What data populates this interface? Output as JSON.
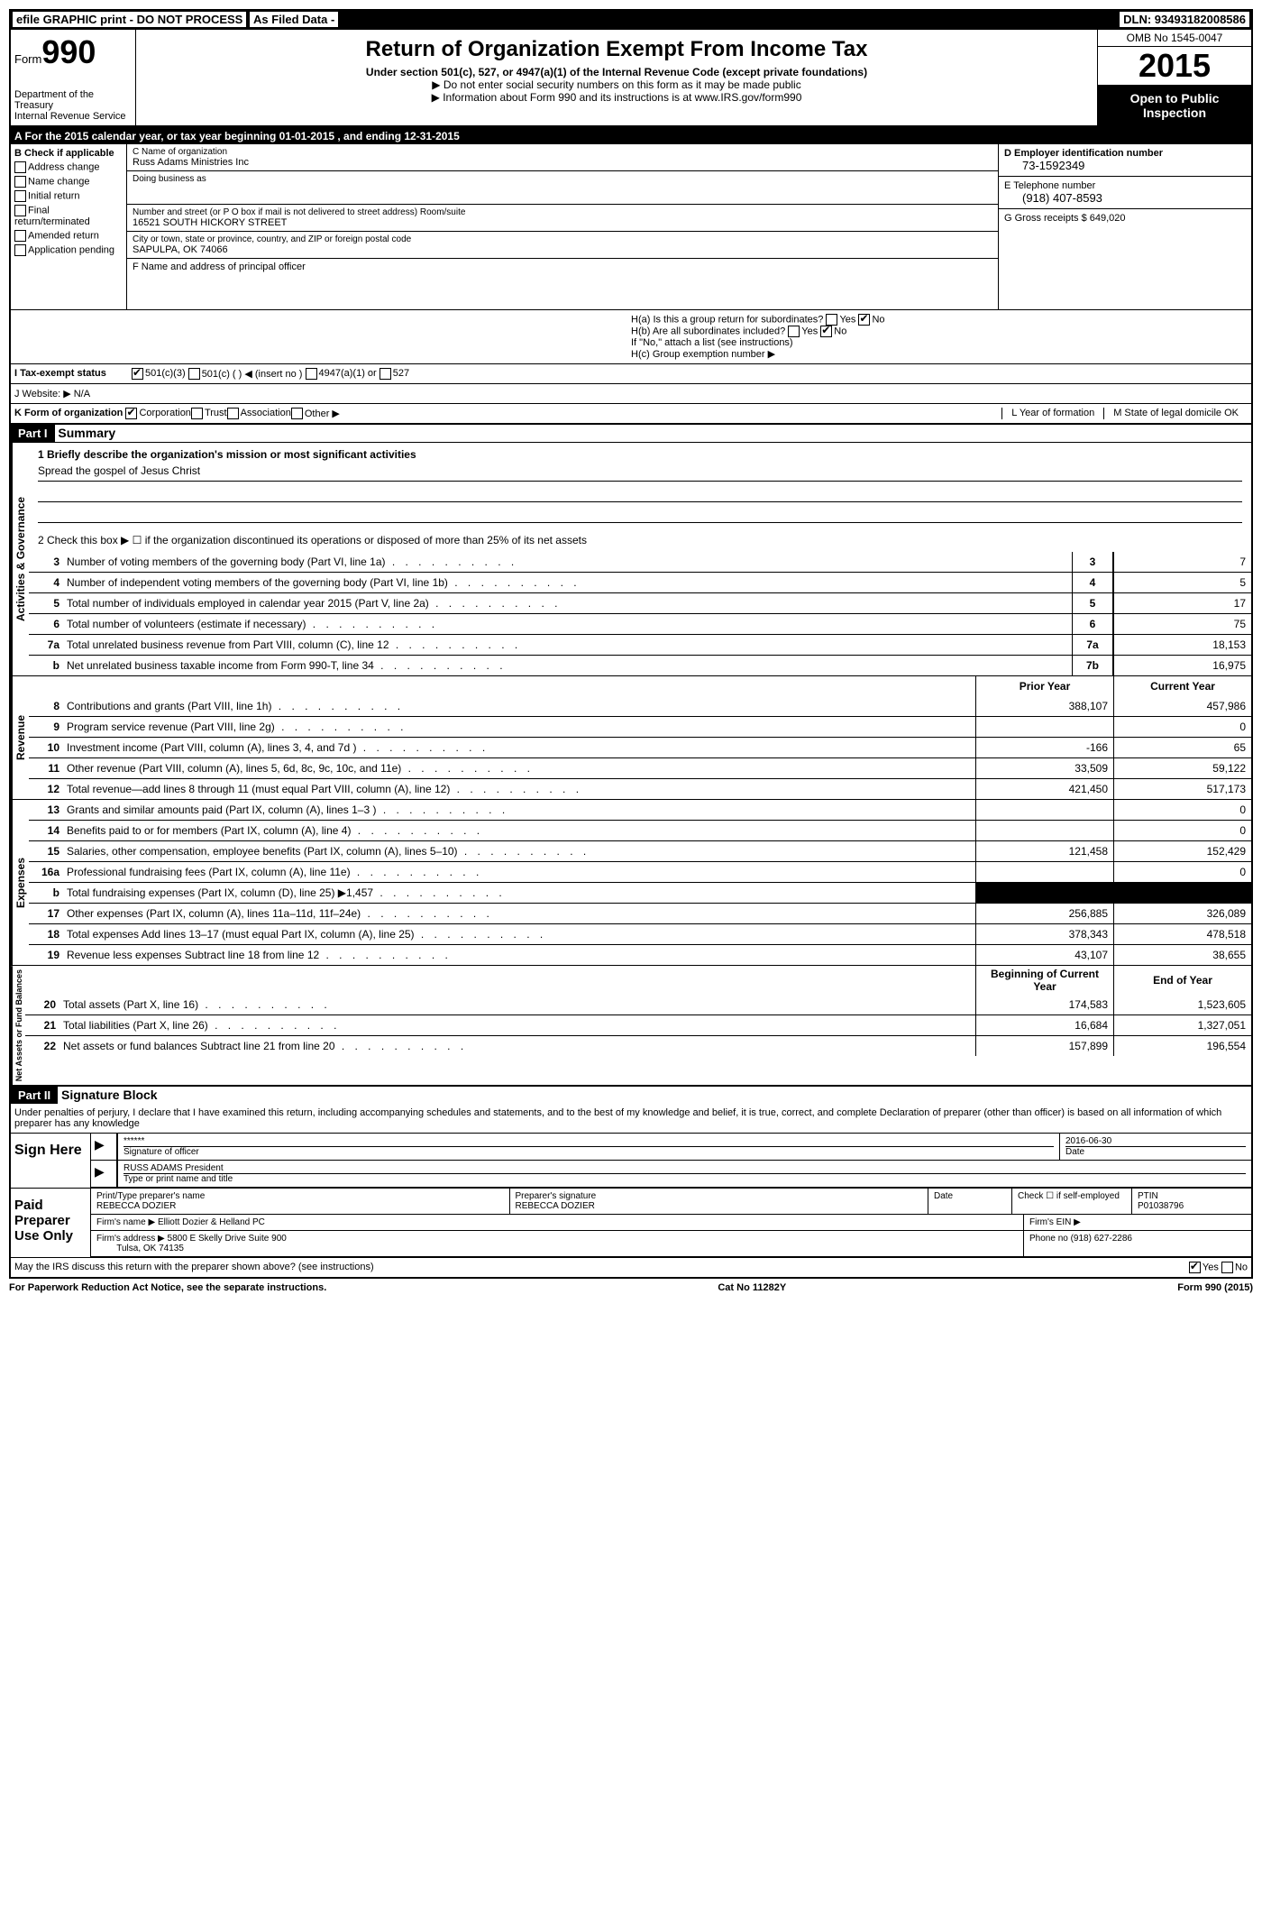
{
  "header_bar": {
    "left": "efile GRAPHIC print - DO NOT PROCESS",
    "mid": "As Filed Data -",
    "right": "DLN: 93493182008586"
  },
  "form_header": {
    "form_label": "Form",
    "form_num": "990",
    "dept1": "Department of the Treasury",
    "dept2": "Internal Revenue Service",
    "title": "Return of Organization Exempt From Income Tax",
    "subtitle": "Under section 501(c), 527, or 4947(a)(1) of the Internal Revenue Code (except private foundations)",
    "note1": "▶ Do not enter social security numbers on this form as it may be made public",
    "note2": "▶ Information about Form 990 and its instructions is at www.IRS.gov/form990",
    "omb": "OMB No 1545-0047",
    "year": "2015",
    "inspection": "Open to Public Inspection"
  },
  "section_a": "A   For the 2015 calendar year, or tax year beginning 01-01-2015    , and ending 12-31-2015",
  "col_b": {
    "title": "B Check if applicable",
    "items": [
      "Address change",
      "Name change",
      "Initial return",
      "Final return/terminated",
      "Amended return",
      "Application pending"
    ]
  },
  "col_c": {
    "name_label": "C Name of organization",
    "name": "Russ Adams Ministries Inc",
    "dba_label": "Doing business as",
    "street_label": "Number and street (or P O  box if mail is not delivered to street address) Room/suite",
    "street": "16521 SOUTH HICKORY STREET",
    "city_label": "City or town, state or province, country, and ZIP or foreign postal code",
    "city": "SAPULPA, OK  74066",
    "f_label": "F   Name and address of principal officer"
  },
  "col_d": {
    "ein_label": "D Employer identification number",
    "ein": "73-1592349",
    "tel_label": "E Telephone number",
    "tel": "(918) 407-8593",
    "gross_label": "G Gross receipts $ 649,020"
  },
  "h_section": {
    "ha": "H(a)  Is this a group return for subordinates?",
    "hb": "H(b)  Are all subordinates included?",
    "hb_note": "If \"No,\" attach a list  (see instructions)",
    "hc": "H(c)   Group exemption number ▶"
  },
  "row_i": "I   Tax-exempt status",
  "row_i_opts": [
    "501(c)(3)",
    "501(c) (  ) ◀ (insert no )",
    "4947(a)(1) or",
    "527"
  ],
  "row_j": "J   Website: ▶   N/A",
  "row_k": "K Form of organization",
  "row_k_opts": [
    "Corporation",
    "Trust",
    "Association",
    "Other ▶"
  ],
  "row_k_l": "L Year of formation",
  "row_k_m": "M State of legal domicile  OK",
  "part1": {
    "label": "Part I",
    "title": "Summary",
    "mission_label": "1 Briefly describe the organization's mission or most significant activities",
    "mission": "Spread the gospel of Jesus Christ",
    "check2": "2  Check this box ▶ ☐ if the organization discontinued its operations or disposed of more than 25% of its net assets"
  },
  "gov_lines": [
    {
      "n": "3",
      "t": "Number of voting members of the governing body (Part VI, line 1a)",
      "c": "3",
      "v": "7"
    },
    {
      "n": "4",
      "t": "Number of independent voting members of the governing body (Part VI, line 1b)",
      "c": "4",
      "v": "5"
    },
    {
      "n": "5",
      "t": "Total number of individuals employed in calendar year 2015 (Part V, line 2a)",
      "c": "5",
      "v": "17"
    },
    {
      "n": "6",
      "t": "Total number of volunteers (estimate if necessary)",
      "c": "6",
      "v": "75"
    },
    {
      "n": "7a",
      "t": "Total unrelated business revenue from Part VIII, column (C), line 12",
      "c": "7a",
      "v": "18,153"
    },
    {
      "n": "b",
      "t": "Net unrelated business taxable income from Form 990-T, line 34",
      "c": "7b",
      "v": "16,975"
    }
  ],
  "rev_header": {
    "prior": "Prior Year",
    "current": "Current Year"
  },
  "rev_lines": [
    {
      "n": "8",
      "t": "Contributions and grants (Part VIII, line 1h)",
      "p": "388,107",
      "c": "457,986"
    },
    {
      "n": "9",
      "t": "Program service revenue (Part VIII, line 2g)",
      "p": "",
      "c": "0"
    },
    {
      "n": "10",
      "t": "Investment income (Part VIII, column (A), lines 3, 4, and 7d )",
      "p": "-166",
      "c": "65"
    },
    {
      "n": "11",
      "t": "Other revenue (Part VIII, column (A), lines 5, 6d, 8c, 9c, 10c, and 11e)",
      "p": "33,509",
      "c": "59,122"
    },
    {
      "n": "12",
      "t": "Total revenue—add lines 8 through 11 (must equal Part VIII, column (A), line 12)",
      "p": "421,450",
      "c": "517,173"
    }
  ],
  "exp_lines": [
    {
      "n": "13",
      "t": "Grants and similar amounts paid (Part IX, column (A), lines 1–3 )",
      "p": "",
      "c": "0"
    },
    {
      "n": "14",
      "t": "Benefits paid to or for members (Part IX, column (A), line 4)",
      "p": "",
      "c": "0"
    },
    {
      "n": "15",
      "t": "Salaries, other compensation, employee benefits (Part IX, column (A), lines 5–10)",
      "p": "121,458",
      "c": "152,429"
    },
    {
      "n": "16a",
      "t": "Professional fundraising fees (Part IX, column (A), line 11e)",
      "p": "",
      "c": "0"
    },
    {
      "n": "b",
      "t": "Total fundraising expenses (Part IX, column (D), line 25) ▶1,457",
      "p": "BLACK",
      "c": "BLACK"
    },
    {
      "n": "17",
      "t": "Other expenses (Part IX, column (A), lines 11a–11d, 11f–24e)",
      "p": "256,885",
      "c": "326,089"
    },
    {
      "n": "18",
      "t": "Total expenses  Add lines 13–17 (must equal Part IX, column (A), line 25)",
      "p": "378,343",
      "c": "478,518"
    },
    {
      "n": "19",
      "t": "Revenue less expenses  Subtract line 18 from line 12",
      "p": "43,107",
      "c": "38,655"
    }
  ],
  "net_header": {
    "begin": "Beginning of Current Year",
    "end": "End of Year"
  },
  "net_lines": [
    {
      "n": "20",
      "t": "Total assets (Part X, line 16)",
      "p": "174,583",
      "c": "1,523,605"
    },
    {
      "n": "21",
      "t": "Total liabilities (Part X, line 26)",
      "p": "16,684",
      "c": "1,327,051"
    },
    {
      "n": "22",
      "t": "Net assets or fund balances  Subtract line 21 from line 20",
      "p": "157,899",
      "c": "196,554"
    }
  ],
  "part2": {
    "label": "Part II",
    "title": "Signature Block",
    "text": "Under penalties of perjury, I declare that I have examined this return, including accompanying schedules and statements, and to the best of my knowledge and belief, it is true, correct, and complete  Declaration of preparer (other than officer) is based on all information of which preparer has any knowledge"
  },
  "sign": {
    "label": "Sign Here",
    "stars": "******",
    "sig_label": "Signature of officer",
    "date": "2016-06-30",
    "date_label": "Date",
    "name": "RUSS ADAMS President",
    "name_label": "Type or print name and title"
  },
  "preparer": {
    "label": "Paid Preparer Use Only",
    "name_label": "Print/Type preparer's name",
    "name": "REBECCA DOZIER",
    "sig_label": "Preparer's signature",
    "sig": "REBECCA DOZIER",
    "date_label": "Date",
    "self_label": "Check ☐ if self-employed",
    "ptin_label": "PTIN",
    "ptin": "P01038796",
    "firm_name_label": "Firm's name    ▶",
    "firm_name": "Elliott Dozier & Helland PC",
    "firm_ein_label": "Firm's EIN ▶",
    "firm_addr_label": "Firm's address ▶",
    "firm_addr": "5800 E Skelly Drive Suite 900",
    "firm_city": "Tulsa, OK  74135",
    "firm_phone_label": "Phone no  (918) 627-2286"
  },
  "irs_discuss": "May the IRS discuss this return with the preparer shown above? (see instructions)",
  "footer": {
    "left": "For Paperwork Reduction Act Notice, see the separate instructions.",
    "mid": "Cat No 11282Y",
    "right": "Form 990 (2015)"
  },
  "vert_labels": {
    "gov": "Activities & Governance",
    "rev": "Revenue",
    "exp": "Expenses",
    "net": "Net Assets or Fund Balances"
  }
}
